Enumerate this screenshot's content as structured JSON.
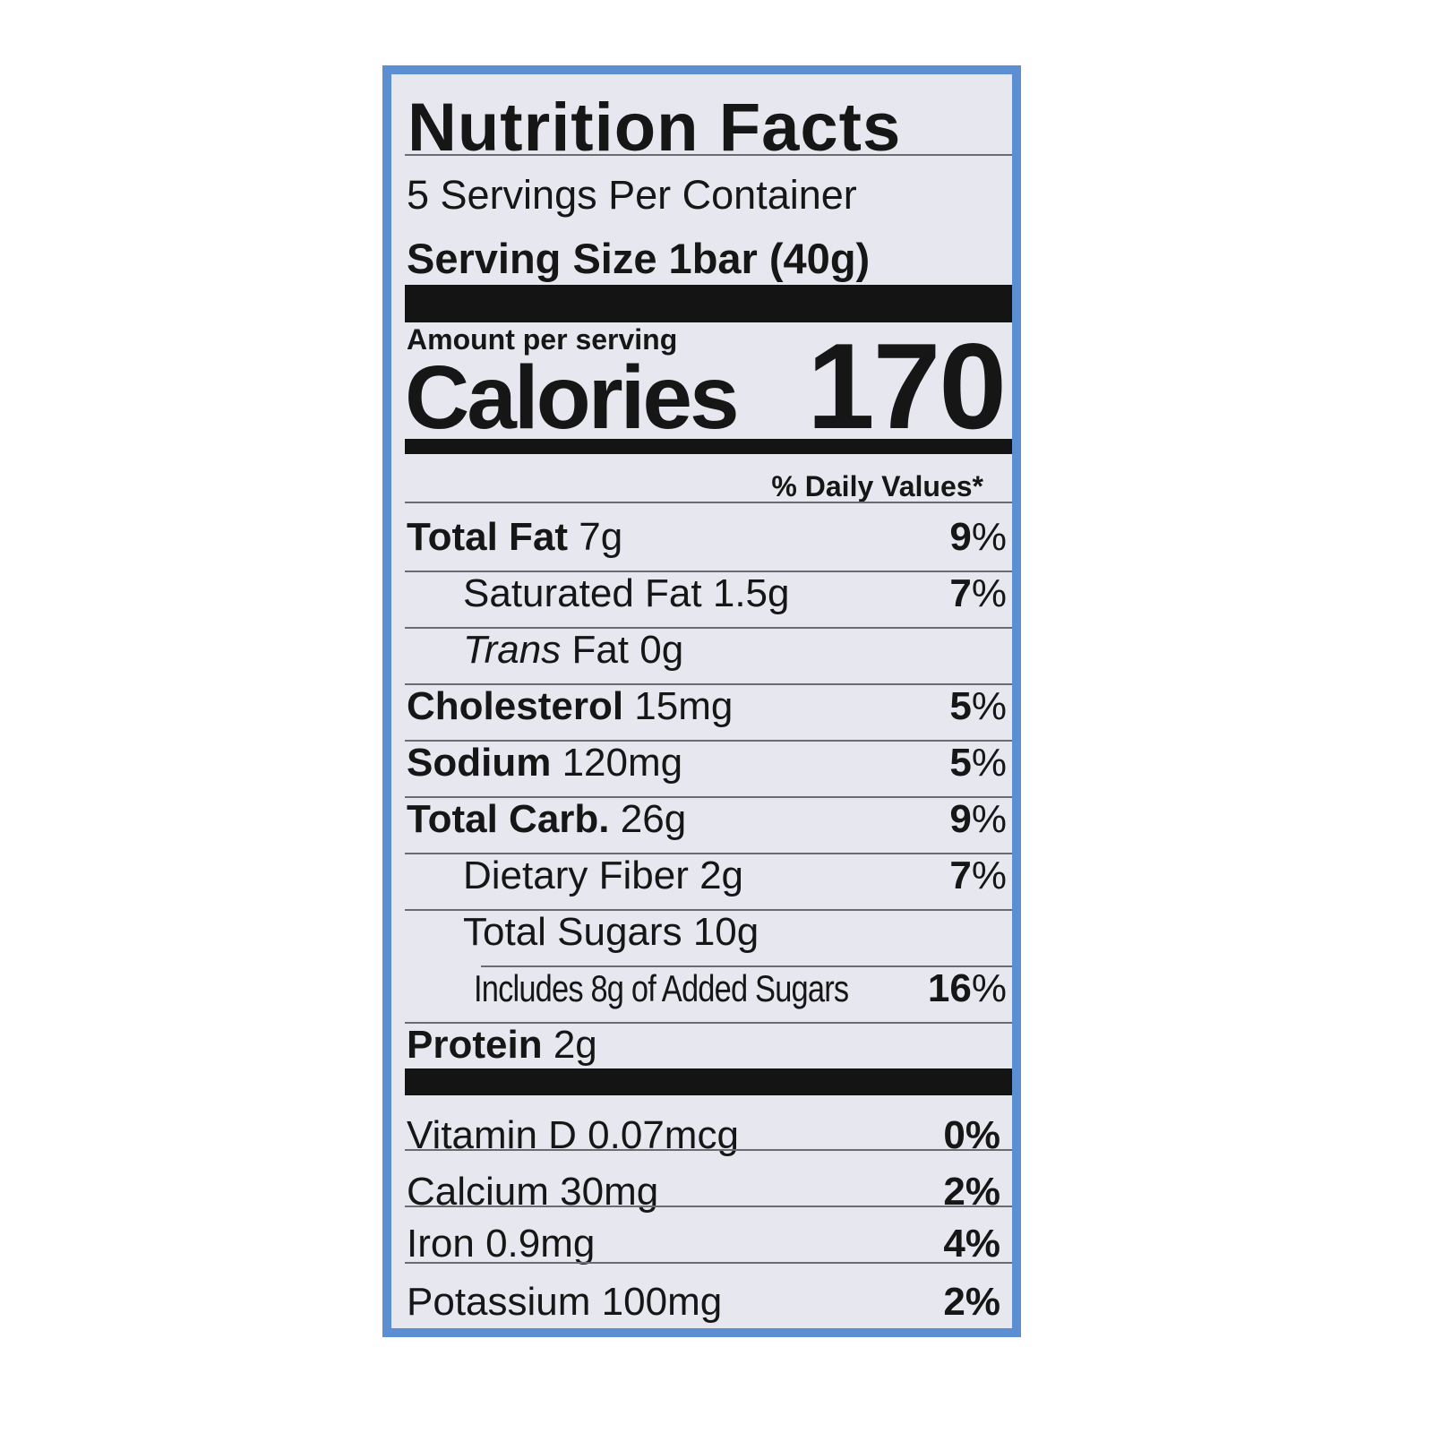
{
  "label": {
    "title": "Nutrition Facts",
    "servings_per_container": "5 Servings Per Container",
    "serving_size": "Serving Size 1bar (40g)",
    "amount_per_serving": "Amount per serving",
    "calories_label": "Calories",
    "calories_value": "170",
    "daily_values_header": "% Daily Values*",
    "nutrients": [
      {
        "name": "Total Fat",
        "amount": "7g",
        "dv": "9",
        "bold": true,
        "indent": 0
      },
      {
        "name": "Saturated Fat",
        "amount": "1.5g",
        "dv": "7",
        "bold": false,
        "indent": 1
      },
      {
        "italic": "Trans",
        "name": "Fat",
        "amount": "0g",
        "dv": "",
        "bold": false,
        "indent": 1
      },
      {
        "name": "Cholesterol",
        "amount": "15mg",
        "dv": "5",
        "bold": true,
        "indent": 0
      },
      {
        "name": "Sodium",
        "amount": "120mg",
        "dv": "5",
        "bold": true,
        "indent": 0
      },
      {
        "name": "Total Carb.",
        "amount": "26g",
        "dv": "9",
        "bold": true,
        "indent": 0
      },
      {
        "name": "Dietary Fiber",
        "amount": "2g",
        "dv": "7",
        "bold": false,
        "indent": 1
      },
      {
        "name": "Total Sugars",
        "amount": "10g",
        "dv": "",
        "bold": false,
        "indent": 1
      },
      {
        "name": "Includes 8g of Added Sugars",
        "amount": "",
        "dv": "16",
        "bold": false,
        "indent": 2
      },
      {
        "name": "Protein",
        "amount": "2g",
        "dv": "",
        "bold": true,
        "indent": 0
      }
    ],
    "vitamins": [
      {
        "name": "Vitamin D",
        "amount": "0.07mcg",
        "dv": "0%"
      },
      {
        "name": "Calcium",
        "amount": "30mg",
        "dv": "2%"
      },
      {
        "name": "Iron",
        "amount": "0.9mg",
        "dv": "4%"
      },
      {
        "name": "Potassium",
        "amount": "100mg",
        "dv": "2%"
      }
    ],
    "colors": {
      "border": "#5b8fd2",
      "background": "#e7e7ef",
      "ink": "#161616"
    }
  }
}
